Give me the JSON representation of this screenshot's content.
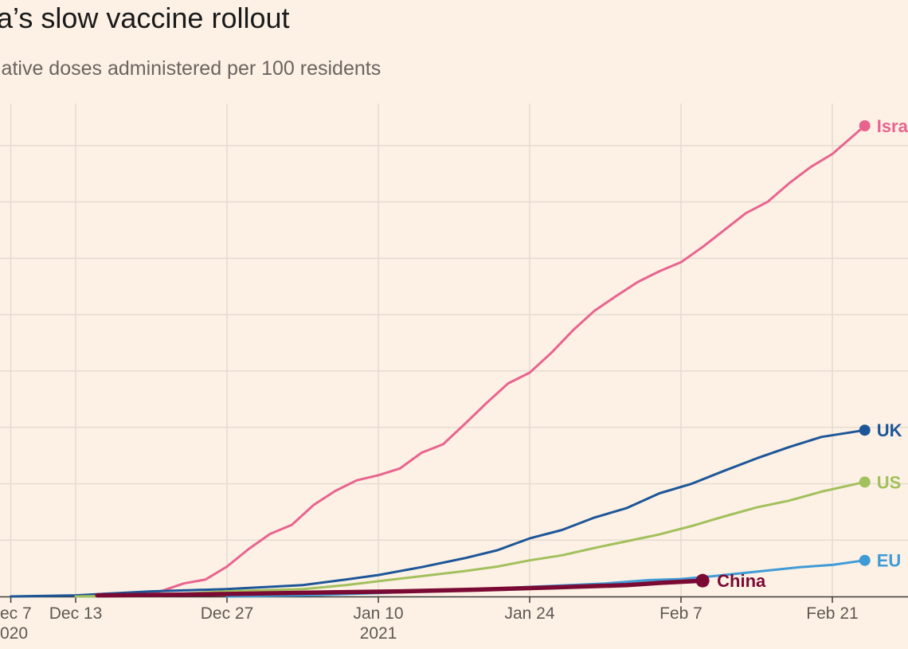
{
  "title": "a’s slow vaccine rollout",
  "subtitle": "lative doses administered per 100 residents",
  "colors": {
    "background": "#fdf1e5",
    "grid": "#e5dbd0",
    "axis": "#3a3a3a",
    "Israel": "#e8648f",
    "UK": "#1d5698",
    "US": "#a2c05c",
    "EU": "#3f9bd6",
    "China": "#7a0a33"
  },
  "chart_data": {
    "type": "line",
    "title": "a’s slow vaccine rollout",
    "subtitle": "lative doses administered per 100 residents",
    "xlabel": "",
    "ylabel": "",
    "x_ticks": [
      {
        "date": "2020-12-07",
        "line1": "ec 7",
        "line2": "020"
      },
      {
        "date": "2020-12-13",
        "line1": "Dec 13",
        "line2": ""
      },
      {
        "date": "2020-12-27",
        "line1": "Dec 27",
        "line2": ""
      },
      {
        "date": "2021-01-10",
        "line1": "Jan 10",
        "line2": "2021"
      },
      {
        "date": "2021-01-24",
        "line1": "Jan 24",
        "line2": ""
      },
      {
        "date": "2021-02-07",
        "line1": "Feb 7",
        "line2": ""
      },
      {
        "date": "2021-02-21",
        "line1": "Feb 21",
        "line2": ""
      }
    ],
    "xlim": [
      "2020-12-06",
      "2021-02-28"
    ],
    "ylim": [
      0,
      90
    ],
    "y_gridlines": [
      10,
      20,
      30,
      40,
      50,
      60,
      70,
      80
    ],
    "grid": true,
    "series": [
      {
        "name": "Israel",
        "color_key": "Israel",
        "end_marker": true,
        "points": [
          [
            "2020-12-19",
            0.1
          ],
          [
            "2020-12-21",
            1.0
          ],
          [
            "2020-12-23",
            2.3
          ],
          [
            "2020-12-25",
            3.0
          ],
          [
            "2020-12-27",
            5.3
          ],
          [
            "2020-12-29",
            8.4
          ],
          [
            "2020-12-31",
            11.1
          ],
          [
            "2021-01-02",
            12.7
          ],
          [
            "2021-01-04",
            16.2
          ],
          [
            "2021-01-06",
            18.7
          ],
          [
            "2021-01-08",
            20.6
          ],
          [
            "2021-01-10",
            21.5
          ],
          [
            "2021-01-12",
            22.7
          ],
          [
            "2021-01-14",
            25.5
          ],
          [
            "2021-01-16",
            27.0
          ],
          [
            "2021-01-18",
            30.6
          ],
          [
            "2021-01-20",
            34.3
          ],
          [
            "2021-01-22",
            37.8
          ],
          [
            "2021-01-24",
            39.7
          ],
          [
            "2021-01-26",
            43.2
          ],
          [
            "2021-01-28",
            47.2
          ],
          [
            "2021-01-30",
            50.7
          ],
          [
            "2021-02-01",
            53.3
          ],
          [
            "2021-02-03",
            55.8
          ],
          [
            "2021-02-05",
            57.7
          ],
          [
            "2021-02-07",
            59.3
          ],
          [
            "2021-02-09",
            62.0
          ],
          [
            "2021-02-11",
            65.0
          ],
          [
            "2021-02-13",
            68.0
          ],
          [
            "2021-02-15",
            70.0
          ],
          [
            "2021-02-17",
            73.3
          ],
          [
            "2021-02-19",
            76.2
          ],
          [
            "2021-02-21",
            78.5
          ],
          [
            "2021-02-24",
            83.5
          ]
        ]
      },
      {
        "name": "UK",
        "color_key": "UK",
        "end_marker": true,
        "points": [
          [
            "2020-12-07",
            0.0
          ],
          [
            "2020-12-13",
            0.2
          ],
          [
            "2020-12-20",
            0.9
          ],
          [
            "2020-12-27",
            1.3
          ],
          [
            "2021-01-03",
            2.0
          ],
          [
            "2021-01-07",
            3.0
          ],
          [
            "2021-01-10",
            3.8
          ],
          [
            "2021-01-14",
            5.2
          ],
          [
            "2021-01-18",
            6.8
          ],
          [
            "2021-01-21",
            8.2
          ],
          [
            "2021-01-24",
            10.3
          ],
          [
            "2021-01-27",
            11.8
          ],
          [
            "2021-01-30",
            14.0
          ],
          [
            "2021-02-02",
            15.7
          ],
          [
            "2021-02-05",
            18.3
          ],
          [
            "2021-02-08",
            20.0
          ],
          [
            "2021-02-11",
            22.3
          ],
          [
            "2021-02-14",
            24.5
          ],
          [
            "2021-02-17",
            26.5
          ],
          [
            "2021-02-20",
            28.3
          ],
          [
            "2021-02-24",
            29.5
          ]
        ]
      },
      {
        "name": "US",
        "color_key": "US",
        "end_marker": true,
        "points": [
          [
            "2020-12-13",
            0.0
          ],
          [
            "2020-12-20",
            0.2
          ],
          [
            "2020-12-27",
            0.9
          ],
          [
            "2021-01-03",
            1.3
          ],
          [
            "2021-01-07",
            2.0
          ],
          [
            "2021-01-10",
            2.7
          ],
          [
            "2021-01-14",
            3.6
          ],
          [
            "2021-01-18",
            4.5
          ],
          [
            "2021-01-21",
            5.3
          ],
          [
            "2021-01-24",
            6.4
          ],
          [
            "2021-01-27",
            7.3
          ],
          [
            "2021-01-30",
            8.6
          ],
          [
            "2021-02-02",
            9.8
          ],
          [
            "2021-02-05",
            11.0
          ],
          [
            "2021-02-08",
            12.5
          ],
          [
            "2021-02-11",
            14.2
          ],
          [
            "2021-02-14",
            15.8
          ],
          [
            "2021-02-17",
            17.0
          ],
          [
            "2021-02-20",
            18.6
          ],
          [
            "2021-02-24",
            20.3
          ]
        ]
      },
      {
        "name": "EU",
        "color_key": "EU",
        "end_marker": true,
        "points": [
          [
            "2020-12-27",
            0.0
          ],
          [
            "2021-01-03",
            0.2
          ],
          [
            "2021-01-10",
            0.6
          ],
          [
            "2021-01-17",
            1.1
          ],
          [
            "2021-01-24",
            1.7
          ],
          [
            "2021-01-31",
            2.3
          ],
          [
            "2021-02-04",
            2.9
          ],
          [
            "2021-02-07",
            3.1
          ],
          [
            "2021-02-10",
            3.6
          ],
          [
            "2021-02-14",
            4.4
          ],
          [
            "2021-02-18",
            5.2
          ],
          [
            "2021-02-21",
            5.6
          ],
          [
            "2021-02-24",
            6.4
          ]
        ]
      },
      {
        "name": "China",
        "color_key": "China",
        "end_marker": true,
        "thick": true,
        "points": [
          [
            "2020-12-15",
            0.2
          ],
          [
            "2020-12-22",
            0.3
          ],
          [
            "2020-12-29",
            0.5
          ],
          [
            "2021-01-05",
            0.7
          ],
          [
            "2021-01-12",
            0.9
          ],
          [
            "2021-01-19",
            1.2
          ],
          [
            "2021-01-26",
            1.6
          ],
          [
            "2021-02-02",
            2.0
          ],
          [
            "2021-02-05",
            2.4
          ],
          [
            "2021-02-09",
            2.8
          ]
        ]
      }
    ]
  }
}
